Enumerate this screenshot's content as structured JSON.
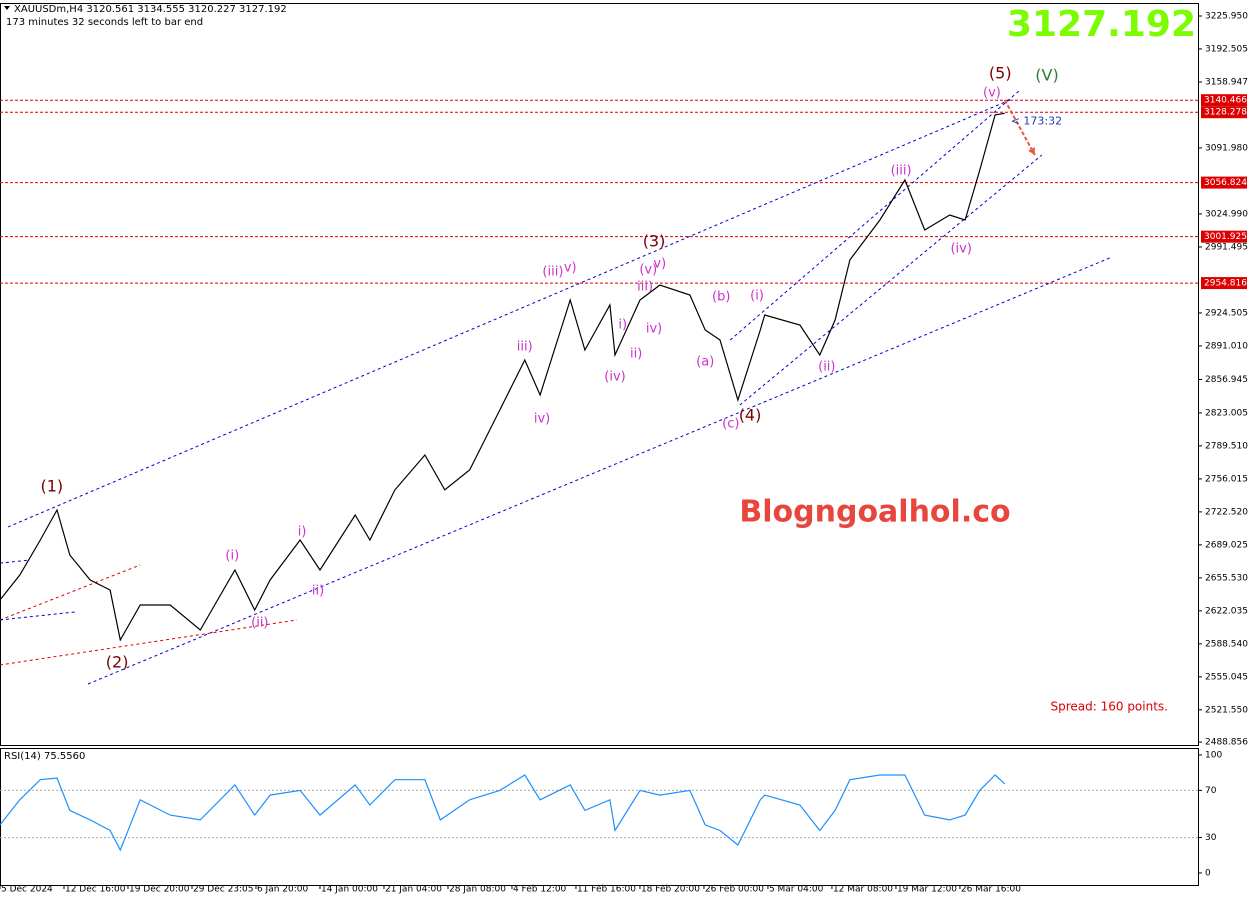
{
  "chart_data": [
    {
      "type": "line",
      "title": "XAUUSDm,H4  3120.561 3134.555 3120.227 3127.192",
      "subtitle": "173 minutes 32 seconds left to bar end",
      "bid": 3127.192,
      "countdown": "< 173:32",
      "watermark": "Blogngoalhol.co",
      "spread": "Spread: 160 points.",
      "xlim": [
        0,
        18.72
      ],
      "ylim": [
        2485.86,
        3239.15
      ],
      "xticks": [
        {
          "value": 0,
          "label": "5 Dec 2024"
        },
        {
          "value": 1,
          "label": "12 Dec 16:00"
        },
        {
          "value": 2,
          "label": "19 Dec 20:00"
        },
        {
          "value": 3,
          "label": "29 Dec 23:05"
        },
        {
          "value": 4,
          "label": "6 Jan 20:00"
        },
        {
          "value": 5,
          "label": "14 Jan 00:00"
        },
        {
          "value": 6,
          "label": "21 Jan 04:00"
        },
        {
          "value": 7,
          "label": "28 Jan 08:00"
        },
        {
          "value": 8,
          "label": "4 Feb 12:00"
        },
        {
          "value": 9,
          "label": "11 Feb 16:00"
        },
        {
          "value": 10,
          "label": "18 Feb 20:00"
        },
        {
          "value": 11,
          "label": "26 Feb 00:00"
        },
        {
          "value": 12,
          "label": "5 Mar 04:00"
        },
        {
          "value": 13,
          "label": "12 Mar 08:00"
        },
        {
          "value": 14,
          "label": "19 Mar 12:00"
        },
        {
          "value": 15,
          "label": "26 Mar 16:00"
        }
      ],
      "yticks": [
        {
          "value": 3225.95,
          "label": "3225.950"
        },
        3192.505,
        3158.947,
        {
          "value": 3091.98,
          "label": "3091.980"
        },
        {
          "value": 3024.99,
          "label": "3024.990"
        },
        2991.495,
        2924.505,
        {
          "value": 2891.01,
          "label": "2891.010"
        },
        2856.945,
        2823.005,
        {
          "value": 2789.51,
          "label": "2789.510"
        },
        2756.015,
        {
          "value": 2722.52,
          "label": "2722.520"
        },
        2689.025,
        {
          "value": 2655.53,
          "label": "2655.530"
        },
        2622.035,
        {
          "value": 2588.54,
          "label": "2588.540"
        },
        2555.045,
        {
          "value": 2521.55,
          "label": "2521.550"
        },
        2488.856
      ],
      "series": [
        {
          "name": "XAUUSDm",
          "color": "#000000",
          "x": [
            0,
            0.31,
            0.63,
            0.89,
            1.09,
            1.41,
            1.72,
            1.88,
            2.19,
            2.66,
            3.13,
            3.67,
            3.98,
            4.22,
            4.69,
            5.0,
            5.55,
            5.78,
            6.17,
            6.64,
            6.95,
            7.34,
            7.81,
            8.2,
            8.44,
            8.91,
            9.14,
            9.53,
            9.61,
            10.0,
            10.31,
            10.78,
            11.02,
            11.25,
            11.53,
            11.88,
            11.95,
            12.5,
            12.81,
            13.05,
            13.28,
            13.75,
            14.14,
            14.45,
            14.84,
            15.08,
            15.31,
            15.55,
            15.7
          ],
          "values": [
            2633.1,
            2658.4,
            2694.0,
            2724.4,
            2678.8,
            2653.4,
            2643.2,
            2592.5,
            2628.0,
            2628.0,
            2602.6,
            2663.5,
            2622.9,
            2653.4,
            2694.0,
            2663.5,
            2719.4,
            2694.0,
            2744.8,
            2780.3,
            2744.8,
            2765.1,
            2826.0,
            2876.7,
            2841.2,
            2937.6,
            2886.9,
            2932.6,
            2881.8,
            2937.6,
            2952.8,
            2942.7,
            2907.2,
            2897.0,
            2836.1,
            2907.2,
            2922.4,
            2912.2,
            2881.8,
            2917.3,
            2978.3,
            3018.8,
            3059.5,
            3008.7,
            3023.9,
            3018.8,
            3069.6,
            3125.5,
            3127.192
          ]
        }
      ],
      "levels": [
        3140.466,
        3128.278,
        3056.824,
        3001.925,
        2954.816
      ],
      "level_color": "#dd0000",
      "trendlines": [
        {
          "color": "#0000cc",
          "points": [
            [
              0.125,
              2707.2
            ],
            [
              15.78,
              3140.7
            ]
          ]
        },
        {
          "color": "#0000cc",
          "points": [
            [
              1.375,
              2547.8
            ],
            [
              17.34,
              2980.3
            ]
          ]
        },
        {
          "color": "#0000cc",
          "points": [
            [
              11.41,
              2897.0
            ],
            [
              15.94,
              3150.8
            ]
          ]
        },
        {
          "color": "#0000cc",
          "points": [
            [
              11.56,
              2831.0
            ],
            [
              16.28,
              3084.8
            ]
          ]
        },
        {
          "color": "#dd0000",
          "points": [
            [
              0,
              2612.8
            ],
            [
              2.19,
              2668.6
            ]
          ]
        },
        {
          "color": "#dd0000",
          "points": [
            [
              0,
              2567.1
            ],
            [
              4.64,
              2612.8
            ]
          ]
        },
        {
          "color": "#0000cc",
          "points": [
            [
              0,
              2612.8
            ],
            [
              1.17,
              2620.9
            ]
          ]
        },
        {
          "color": "#0000cc",
          "points": [
            [
              0,
              2670.6
            ],
            [
              0.47,
              2673.6
            ]
          ]
        }
      ],
      "arrow": {
        "color": "#ee5544",
        "points": [
          [
            15.7,
            3140.7
          ],
          [
            16.17,
            3084.8
          ]
        ]
      },
      "annotations": [
        {
          "text": "(1)",
          "x": 0.81,
          "y": 2747.8,
          "color": "#7a0000"
        },
        {
          "text": "(2)",
          "x": 1.83,
          "y": 2569.1,
          "color": "#7a0000"
        },
        {
          "text": "(3)",
          "x": 10.22,
          "y": 2996.5,
          "color": "#7a0000"
        },
        {
          "text": "(4)",
          "x": 11.72,
          "y": 2819.9,
          "color": "#7a0000"
        },
        {
          "text": "(5)",
          "x": 15.63,
          "y": 3167.1,
          "color": "#7a0000"
        },
        {
          "text": "(V)",
          "x": 16.36,
          "y": 3165.0,
          "color": "#2e7d32"
        },
        {
          "text": "(i)",
          "x": 3.63,
          "y": 2677.7,
          "color": "#cc33cc"
        },
        {
          "text": "(ii)",
          "x": 4.06,
          "y": 2609.7,
          "color": "#cc33cc"
        },
        {
          "text": "i)",
          "x": 4.72,
          "y": 2702.1,
          "color": "#cc33cc"
        },
        {
          "text": "ii)",
          "x": 4.97,
          "y": 2642.2,
          "color": "#cc33cc"
        },
        {
          "text": "(iii)",
          "x": 8.64,
          "y": 2966.1,
          "color": "#cc33cc"
        },
        {
          "text": "v)",
          "x": 8.91,
          "y": 2970.1,
          "color": "#cc33cc"
        },
        {
          "text": "iii)",
          "x": 8.2,
          "y": 2889.9,
          "color": "#cc33cc"
        },
        {
          "text": "iv)",
          "x": 8.47,
          "y": 2816.8,
          "color": "#cc33cc"
        },
        {
          "text": "(v)",
          "x": 10.13,
          "y": 2968.1,
          "color": "#cc33cc"
        },
        {
          "text": "v)",
          "x": 10.31,
          "y": 2974.2,
          "color": "#cc33cc"
        },
        {
          "text": "iii)",
          "x": 10.08,
          "y": 2950.8,
          "color": "#cc33cc"
        },
        {
          "text": "i)",
          "x": 9.73,
          "y": 2912.2,
          "color": "#cc33cc"
        },
        {
          "text": "ii)",
          "x": 9.94,
          "y": 2882.8,
          "color": "#cc33cc"
        },
        {
          "text": "iv)",
          "x": 10.22,
          "y": 2908.2,
          "color": "#cc33cc"
        },
        {
          "text": "(iv)",
          "x": 9.61,
          "y": 2859.4,
          "color": "#cc33cc"
        },
        {
          "text": "(b)",
          "x": 11.27,
          "y": 2940.7,
          "color": "#cc33cc"
        },
        {
          "text": "(a)",
          "x": 11.02,
          "y": 2874.7,
          "color": "#cc33cc"
        },
        {
          "text": "(c)",
          "x": 11.42,
          "y": 2811.8,
          "color": "#cc33cc"
        },
        {
          "text": "(i)",
          "x": 11.83,
          "y": 2941.7,
          "color": "#cc33cc"
        },
        {
          "text": "(ii)",
          "x": 12.92,
          "y": 2869.6,
          "color": "#cc33cc"
        },
        {
          "text": "(iii)",
          "x": 14.08,
          "y": 3068.6,
          "color": "#cc33cc"
        },
        {
          "text": "(iv)",
          "x": 15.02,
          "y": 2989.4,
          "color": "#cc33cc"
        },
        {
          "text": "(v)",
          "x": 15.5,
          "y": 3147.8,
          "color": "#cc33cc"
        }
      ]
    },
    {
      "type": "line",
      "title": "RSI(14) 75.5560",
      "xlim": [
        0,
        18.72
      ],
      "ylim": [
        -10.2,
        105.9
      ],
      "yticks": [
        100,
        70,
        30,
        0
      ],
      "grid": [
        70,
        30
      ],
      "series": [
        {
          "name": "RSI(14)",
          "color": "#1e90ff",
          "x": [
            0,
            0.31,
            0.63,
            0.89,
            1.09,
            1.41,
            1.72,
            1.88,
            2.19,
            2.66,
            3.13,
            3.67,
            3.98,
            4.22,
            4.69,
            5.0,
            5.55,
            5.78,
            6.17,
            6.64,
            6.88,
            7.34,
            7.81,
            8.2,
            8.44,
            8.91,
            9.14,
            9.53,
            9.61,
            10.0,
            10.31,
            10.78,
            11.02,
            11.25,
            11.53,
            11.88,
            11.95,
            12.5,
            12.81,
            13.05,
            13.28,
            13.75,
            14.14,
            14.45,
            14.84,
            15.08,
            15.31,
            15.55,
            15.7
          ],
          "values": [
            40.7,
            62,
            79,
            80.5,
            53,
            45,
            36,
            19.5,
            62,
            49,
            45,
            74.6,
            49,
            66,
            70,
            49,
            74.6,
            57.6,
            79,
            79,
            45,
            62,
            70,
            83,
            62,
            74.6,
            53,
            62,
            36,
            70,
            66,
            70,
            40.7,
            36,
            23.7,
            62,
            66,
            57.6,
            36,
            53,
            79,
            83,
            83,
            49,
            45,
            49,
            70,
            83,
            75.556
          ]
        }
      ]
    }
  ]
}
